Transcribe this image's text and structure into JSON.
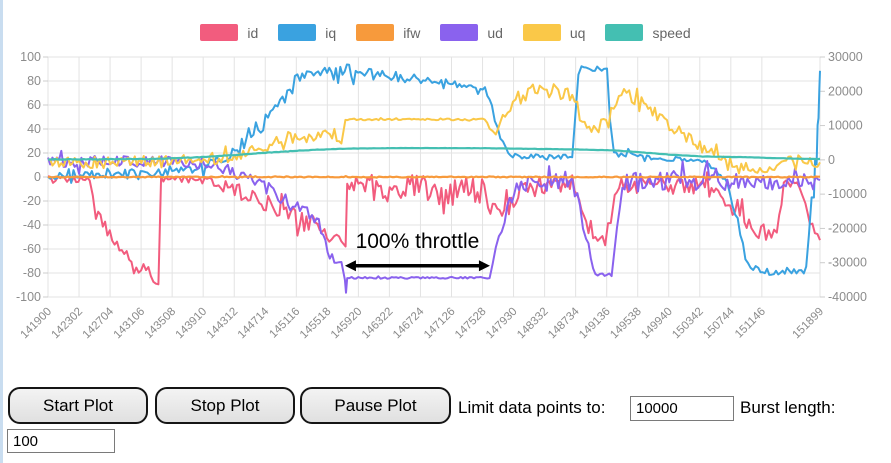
{
  "legend": [
    {
      "label": "id",
      "color": "#f25c7e"
    },
    {
      "label": "iq",
      "color": "#3aa2e0"
    },
    {
      "label": "ifw",
      "color": "#f79a3c"
    },
    {
      "label": "ud",
      "color": "#8a62ee"
    },
    {
      "label": "uq",
      "color": "#fac848"
    },
    {
      "label": "speed",
      "color": "#44bfb2"
    }
  ],
  "controls": {
    "start_label": "Start Plot",
    "stop_label": "Stop Plot",
    "pause_label": "Pause Plot",
    "limit_label": "Limit data points to:",
    "limit_value": "10000",
    "burst_label": "Burst length:",
    "burst_value": "100"
  },
  "chart_data": {
    "type": "line",
    "title": "",
    "grid": true,
    "legend_position": "top",
    "x_range": [
      141900,
      151899
    ],
    "x_ticks": [
      141900,
      142302,
      142704,
      143106,
      143508,
      143910,
      144312,
      144714,
      145116,
      145518,
      145920,
      146322,
      146724,
      147126,
      147528,
      147930,
      148332,
      148734,
      149136,
      149538,
      149940,
      150342,
      150744,
      151146,
      151899
    ],
    "y_left": {
      "min": -100,
      "max": 100,
      "ticks": [
        100,
        80,
        60,
        40,
        20,
        0,
        -20,
        -40,
        -60,
        -80,
        -100
      ]
    },
    "y_right": {
      "min": -40000,
      "max": 30000,
      "ticks": [
        30000,
        20000,
        10000,
        0,
        -10000,
        -20000,
        -30000,
        -40000
      ]
    },
    "annotation": {
      "text": "100% throttle",
      "x_start": 145746,
      "x_end": 147624,
      "y_text": -59,
      "y_arrow": -74
    },
    "series": [
      {
        "name": "id",
        "axis": "left",
        "color": "#f25c7e",
        "points": [
          [
            141900,
            -1,
            3
          ],
          [
            142030,
            -2,
            4
          ],
          [
            142440,
            -2,
            3
          ],
          [
            142520,
            -27,
            4
          ],
          [
            142700,
            -48,
            5
          ],
          [
            142950,
            -68,
            6
          ],
          [
            143200,
            -80,
            6
          ],
          [
            143330,
            -86,
            5
          ],
          [
            143365,
            -2,
            2
          ],
          [
            143900,
            -2,
            3
          ],
          [
            144260,
            -9,
            6
          ],
          [
            144780,
            -24,
            8
          ],
          [
            145160,
            -33,
            8
          ],
          [
            145450,
            -42,
            8
          ],
          [
            145700,
            -55,
            7
          ],
          [
            145755,
            -55,
            5
          ],
          [
            145775,
            -8,
            11
          ],
          [
            146500,
            -9,
            12
          ],
          [
            147550,
            -13,
            12
          ],
          [
            147600,
            -28,
            8
          ],
          [
            147780,
            -30,
            8
          ],
          [
            147990,
            -16,
            8
          ],
          [
            148300,
            -6,
            8
          ],
          [
            148690,
            -5,
            7
          ],
          [
            148780,
            -22,
            6
          ],
          [
            148870,
            -42,
            8
          ],
          [
            149080,
            -47,
            8
          ],
          [
            149190,
            -40,
            6
          ],
          [
            149240,
            -8,
            7
          ],
          [
            149700,
            -7,
            7
          ],
          [
            150380,
            -8,
            7
          ],
          [
            150580,
            -17,
            8
          ],
          [
            150830,
            -28,
            9
          ],
          [
            151010,
            -44,
            9
          ],
          [
            151200,
            -46,
            9
          ],
          [
            151340,
            -46,
            8
          ],
          [
            151430,
            -9,
            6
          ],
          [
            151630,
            -7,
            6
          ],
          [
            151710,
            -21,
            5
          ],
          [
            151800,
            -43,
            5
          ],
          [
            151899,
            -51,
            4
          ]
        ]
      },
      {
        "name": "iq",
        "axis": "left",
        "color": "#3aa2e0",
        "points": [
          [
            141900,
            2,
            4
          ],
          [
            142440,
            4,
            5
          ],
          [
            143100,
            2,
            4
          ],
          [
            143740,
            6,
            5
          ],
          [
            144260,
            20,
            6
          ],
          [
            144500,
            30,
            6
          ],
          [
            144780,
            49,
            6
          ],
          [
            145000,
            70,
            6
          ],
          [
            145163,
            85,
            5
          ],
          [
            145400,
            88,
            5
          ],
          [
            145800,
            88,
            5
          ],
          [
            146200,
            85,
            5
          ],
          [
            146700,
            81,
            4
          ],
          [
            147200,
            76,
            4
          ],
          [
            147560,
            72,
            4
          ],
          [
            147650,
            58,
            4
          ],
          [
            147760,
            34,
            4
          ],
          [
            147860,
            20,
            3
          ],
          [
            147980,
            17,
            2
          ],
          [
            148690,
            17,
            2
          ],
          [
            148730,
            50,
            2
          ],
          [
            148770,
            88,
            3
          ],
          [
            148810,
            90,
            3
          ],
          [
            149100,
            90,
            3
          ],
          [
            149140,
            88,
            3
          ],
          [
            149180,
            45,
            3
          ],
          [
            149230,
            20,
            3
          ],
          [
            149600,
            17,
            2
          ],
          [
            150000,
            15,
            2
          ],
          [
            150400,
            13,
            2
          ],
          [
            150580,
            4,
            3
          ],
          [
            150700,
            -8,
            4
          ],
          [
            150800,
            -28,
            5
          ],
          [
            150900,
            -55,
            5
          ],
          [
            151000,
            -74,
            4
          ],
          [
            151100,
            -78,
            4
          ],
          [
            151500,
            -78,
            4
          ],
          [
            151720,
            -78,
            4
          ],
          [
            151755,
            -48,
            4
          ],
          [
            151790,
            -20,
            4
          ],
          [
            151820,
            -18,
            4
          ],
          [
            151835,
            12,
            4
          ],
          [
            151855,
            14,
            4
          ],
          [
            151868,
            45,
            4
          ],
          [
            151880,
            48,
            4
          ],
          [
            151890,
            70,
            4
          ],
          [
            151899,
            88,
            4
          ]
        ]
      },
      {
        "name": "ud",
        "axis": "left",
        "color": "#8a62ee",
        "points": [
          [
            141900,
            13,
            5
          ],
          [
            143600,
            13,
            5
          ],
          [
            143950,
            11,
            5
          ],
          [
            144260,
            5,
            5
          ],
          [
            144550,
            -3,
            5
          ],
          [
            144820,
            -13,
            6
          ],
          [
            145100,
            -25,
            7
          ],
          [
            145350,
            -36,
            8
          ],
          [
            145550,
            -58,
            9
          ],
          [
            145700,
            -76,
            7
          ],
          [
            145745,
            -84,
            2
          ],
          [
            145760,
            -96,
            1
          ],
          [
            145775,
            -84,
            0.8
          ],
          [
            147620,
            -84,
            0.8
          ],
          [
            147660,
            -72,
            4
          ],
          [
            147740,
            -48,
            6
          ],
          [
            147850,
            -26,
            6
          ],
          [
            147970,
            -12,
            7
          ],
          [
            148150,
            -5,
            7
          ],
          [
            148690,
            -4,
            7
          ],
          [
            148790,
            -26,
            6
          ],
          [
            148870,
            -52,
            6
          ],
          [
            148960,
            -74,
            4
          ],
          [
            149020,
            -81,
            2.5
          ],
          [
            149200,
            -81,
            2.5
          ],
          [
            149270,
            -42,
            6
          ],
          [
            149340,
            -6,
            8
          ],
          [
            149600,
            -3,
            8
          ],
          [
            150380,
            -3,
            8
          ],
          [
            150900,
            -4,
            7
          ],
          [
            151340,
            -4,
            7
          ],
          [
            151899,
            -5,
            6
          ]
        ]
      },
      {
        "name": "uq",
        "axis": "left",
        "color": "#fac848",
        "points": [
          [
            141900,
            12,
            5
          ],
          [
            143600,
            13,
            5
          ],
          [
            144000,
            15,
            5
          ],
          [
            144400,
            19,
            5
          ],
          [
            144800,
            28,
            5
          ],
          [
            145100,
            34,
            6
          ],
          [
            145400,
            35,
            6
          ],
          [
            145700,
            33,
            6
          ],
          [
            145752,
            48,
            0.7
          ],
          [
            147556,
            48,
            0.7
          ],
          [
            147620,
            41,
            3
          ],
          [
            147700,
            39,
            4
          ],
          [
            147820,
            52,
            6
          ],
          [
            147990,
            66,
            7
          ],
          [
            148150,
            72,
            6
          ],
          [
            148450,
            72,
            7
          ],
          [
            148690,
            69,
            7
          ],
          [
            148820,
            47,
            7
          ],
          [
            149000,
            42,
            6
          ],
          [
            149160,
            46,
            6
          ],
          [
            149260,
            64,
            7
          ],
          [
            149360,
            70,
            7
          ],
          [
            149530,
            64,
            6
          ],
          [
            149760,
            53,
            6
          ],
          [
            149980,
            42,
            6
          ],
          [
            150200,
            32,
            5
          ],
          [
            150400,
            24,
            5
          ],
          [
            150620,
            16,
            4
          ],
          [
            150850,
            10,
            4
          ],
          [
            151120,
            7,
            4
          ],
          [
            151340,
            9,
            4
          ],
          [
            151520,
            15,
            5
          ],
          [
            151650,
            18,
            5
          ],
          [
            151770,
            12,
            4
          ],
          [
            151899,
            10,
            3
          ]
        ]
      },
      {
        "name": "ifw",
        "axis": "left",
        "color": "#f79a3c",
        "points": [
          [
            141900,
            0,
            0.4
          ],
          [
            151899,
            0,
            0.4
          ]
        ]
      },
      {
        "name": "speed",
        "axis": "right",
        "color": "#44bfb2",
        "points": [
          [
            141900,
            100,
            100
          ],
          [
            143200,
            250,
            100
          ],
          [
            143800,
            700,
            80
          ],
          [
            144300,
            1400,
            70
          ],
          [
            144800,
            2200,
            60
          ],
          [
            145300,
            2900,
            50
          ],
          [
            145800,
            3300,
            40
          ],
          [
            146500,
            3450,
            35
          ],
          [
            147560,
            3400,
            35
          ],
          [
            148000,
            3250,
            35
          ],
          [
            148700,
            3050,
            35
          ],
          [
            149200,
            2800,
            35
          ],
          [
            149530,
            2300,
            35
          ],
          [
            149960,
            1500,
            35
          ],
          [
            150380,
            1000,
            35
          ],
          [
            150990,
            750,
            35
          ],
          [
            151340,
            480,
            35
          ],
          [
            151899,
            230,
            35
          ]
        ]
      }
    ]
  }
}
